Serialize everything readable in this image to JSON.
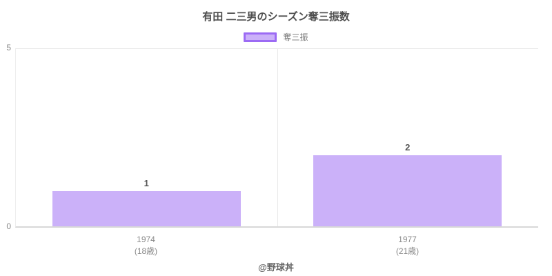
{
  "title": "有田 二三男のシーズン奪三振数",
  "legend": {
    "label": "奪三振"
  },
  "footer": "@野球丼",
  "colors": {
    "bar_fill": "#cbb1f9",
    "bar_border": "#9c6bf4",
    "gridline": "#e8e8e8",
    "baseline": "#d8d8d8"
  },
  "chart_data": {
    "type": "bar",
    "title": "有田 二三男のシーズン奪三振数",
    "series_name": "奪三振",
    "categories": [
      "1974",
      "1977"
    ],
    "category_sublabels": [
      "(18歳)",
      "(21歳)"
    ],
    "values": [
      1,
      2
    ],
    "ylim": [
      0,
      5
    ],
    "yticks": [
      5,
      0
    ],
    "xlabel": "",
    "ylabel": "",
    "grid": "category-dividers",
    "legend_position": "top"
  }
}
